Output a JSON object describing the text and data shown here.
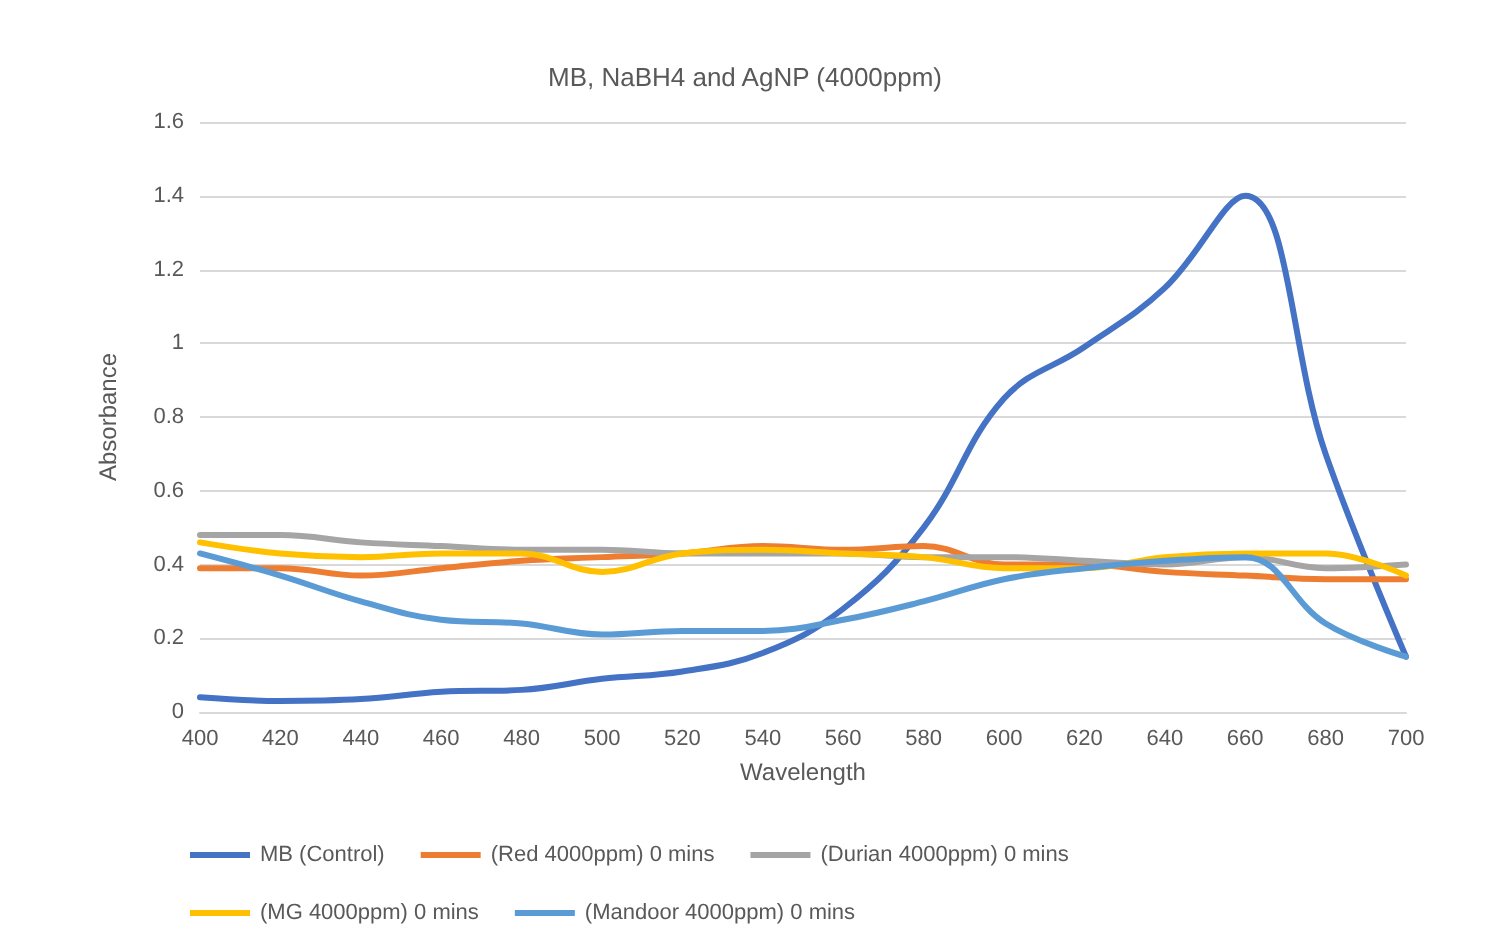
{
  "chart_data": {
    "type": "line",
    "title": "MB, NaBH4 and AgNP (4000ppm)",
    "xlabel": "Wavelength",
    "ylabel": "Absorbance",
    "x": [
      400,
      420,
      440,
      460,
      480,
      500,
      520,
      540,
      560,
      580,
      600,
      620,
      640,
      660,
      680,
      700
    ],
    "series": [
      {
        "name": "MB (Control)",
        "color": "#4472c4",
        "values": [
          0.04,
          0.03,
          0.035,
          0.055,
          0.06,
          0.09,
          0.11,
          0.16,
          0.28,
          0.5,
          0.85,
          0.99,
          1.15,
          1.4,
          0.7,
          0.15
        ]
      },
      {
        "name": "(Red 4000ppm) 0 mins",
        "color": "#ed7d31",
        "values": [
          0.39,
          0.39,
          0.37,
          0.39,
          0.41,
          0.42,
          0.43,
          0.45,
          0.44,
          0.45,
          0.4,
          0.4,
          0.38,
          0.37,
          0.36,
          0.36
        ]
      },
      {
        "name": "(Durian 4000ppm) 0 mins",
        "color": "#a5a5a5",
        "values": [
          0.48,
          0.48,
          0.46,
          0.45,
          0.44,
          0.44,
          0.43,
          0.43,
          0.43,
          0.42,
          0.42,
          0.41,
          0.4,
          0.42,
          0.39,
          0.4
        ]
      },
      {
        "name": "(MG 4000ppm) 0 mins",
        "color": "#ffc000",
        "values": [
          0.46,
          0.43,
          0.42,
          0.43,
          0.43,
          0.38,
          0.43,
          0.44,
          0.43,
          0.42,
          0.39,
          0.39,
          0.42,
          0.43,
          0.43,
          0.37
        ]
      },
      {
        "name": "(Mandoor 4000ppm) 0 mins",
        "color": "#5b9bd5",
        "values": [
          0.43,
          0.37,
          0.3,
          0.25,
          0.24,
          0.21,
          0.22,
          0.22,
          0.25,
          0.3,
          0.36,
          0.39,
          0.41,
          0.42,
          0.24,
          0.15
        ]
      }
    ],
    "xlim": [
      400,
      700
    ],
    "xticks": [
      400,
      420,
      440,
      460,
      480,
      500,
      520,
      540,
      560,
      580,
      600,
      620,
      640,
      660,
      680,
      700
    ],
    "ylim": [
      0,
      1.6
    ],
    "yticks": [
      0,
      0.2,
      0.4,
      0.6,
      0.8,
      1,
      1.2,
      1.4,
      1.6
    ],
    "grid": "y",
    "legend": "bottom",
    "marker": "none",
    "line_style": "solid"
  }
}
